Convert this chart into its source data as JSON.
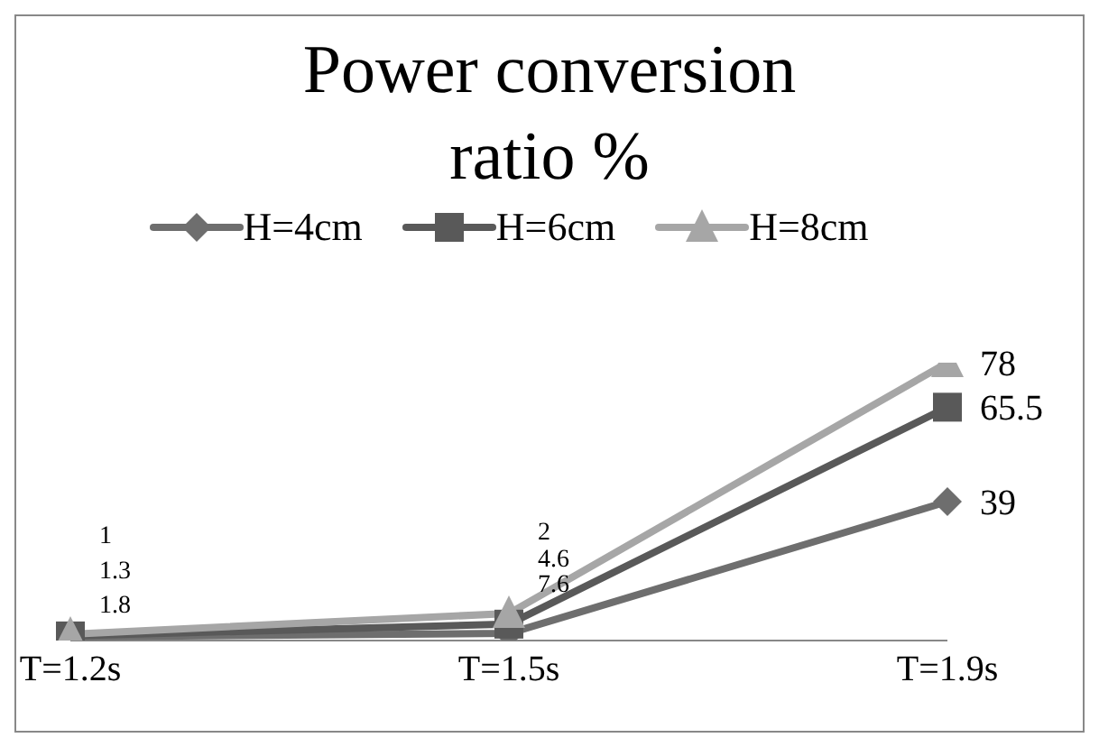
{
  "chart_data": {
    "type": "line",
    "title": "Power conversion ratio %",
    "categories": [
      "T=1.2s",
      "T=1.5s",
      "T=1.9s"
    ],
    "series": [
      {
        "name": "H=4cm",
        "color": "#6e6e6e",
        "marker": "diamond",
        "values": [
          1.0,
          2.0,
          39
        ]
      },
      {
        "name": "H=6cm",
        "color": "#595959",
        "marker": "square",
        "values": [
          1.3,
          4.6,
          65.5
        ]
      },
      {
        "name": "H=8cm",
        "color": "#a6a6a6",
        "marker": "triangle",
        "values": [
          1.8,
          7.6,
          78
        ]
      }
    ],
    "data_labels": true,
    "legend": "top"
  }
}
